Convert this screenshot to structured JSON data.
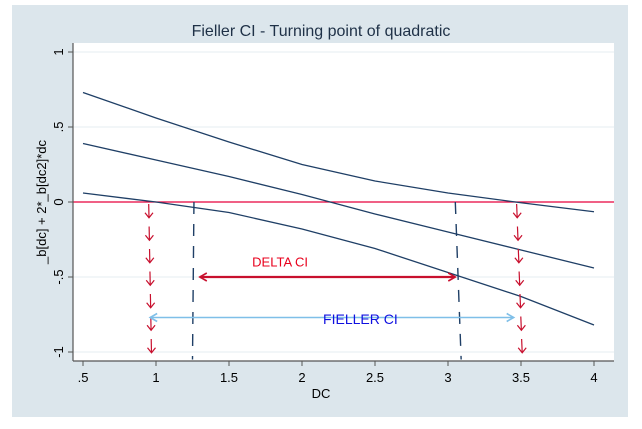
{
  "chart_data": {
    "type": "line",
    "title": "Fieller CI - Turning point of quadratic",
    "xlabel": "DC",
    "ylabel": "_b[dc] + 2*_b[dc2]*dc",
    "xlim": [
      0.5,
      4
    ],
    "ylim": [
      -1.05,
      1.05
    ],
    "xticks": [
      ".5",
      "1",
      "1.5",
      "2",
      "2.5",
      "3",
      "3.5",
      "4"
    ],
    "xtick_values": [
      0.5,
      1,
      1.5,
      2,
      2.5,
      3,
      3.5,
      4
    ],
    "yticks": [
      "-1",
      "-.5",
      "0",
      ".5",
      "1"
    ],
    "ytick_values": [
      -1,
      -0.5,
      0,
      0.5,
      1
    ],
    "grid": true,
    "x": [
      0.5,
      1,
      1.5,
      2,
      2.5,
      3,
      3.5,
      4
    ],
    "series": [
      {
        "values": [
          0.73,
          0.56,
          0.4,
          0.25,
          0.14,
          0.06,
          -0.005,
          -0.065
        ],
        "color": "#1f3f66"
      },
      {
        "values": [
          0.39,
          0.28,
          0.17,
          0.05,
          -0.08,
          -0.2,
          -0.32,
          -0.44
        ],
        "color": "#1f3f66"
      },
      {
        "values": [
          0.06,
          0.0,
          -0.07,
          -0.18,
          -0.31,
          -0.47,
          -0.63,
          -0.82
        ],
        "color": "#1f3f66"
      }
    ],
    "reference_line": {
      "y": 0,
      "color": "#e8003c"
    },
    "dashed_verticals": [
      {
        "x_top": 1.26,
        "x_bottom": 1.25,
        "color": "#1f3f66"
      },
      {
        "x_top": 3.05,
        "x_bottom": 3.09,
        "color": "#1f3f66"
      }
    ],
    "red_dashed_arrows": [
      {
        "x_top": 0.95,
        "x_bottom": 0.97,
        "color": "#c8102e"
      },
      {
        "x_top": 3.47,
        "x_bottom": 3.51,
        "color": "#c8102e"
      }
    ],
    "annotations": [
      {
        "text": "DELTA CI",
        "x": 1.85,
        "y": -0.43,
        "color": "#e8001c",
        "arrow": {
          "from": 3.05,
          "to": 1.3,
          "y": -0.5
        }
      },
      {
        "text": "FIELLER CI",
        "x": 2.4,
        "y": -0.78,
        "color": "#1010e0",
        "arrow": {
          "from": 3.45,
          "to": 0.96,
          "y": -0.77
        },
        "arrow_color": "#7fbfe8"
      }
    ],
    "colors": {
      "background": "#dce6ec",
      "plot_background": "#ffffff",
      "grid": "#e6eef2"
    }
  }
}
